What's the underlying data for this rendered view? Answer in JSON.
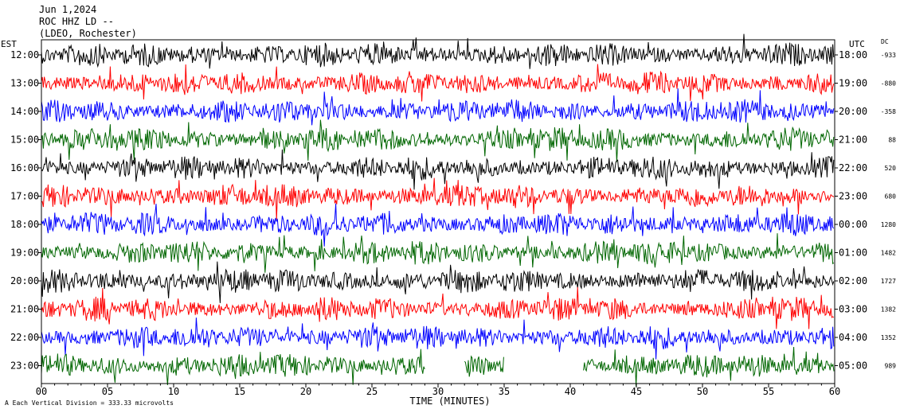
{
  "header": {
    "date": "Jun 1,2024",
    "station": "ROC HHZ LD --",
    "network": "(LDEO, Rochester)"
  },
  "labels": {
    "left_zone": "EST",
    "right_zone": "UTC",
    "dc_label": "DC",
    "footer_note": "Each Vertical Division =  333.33 microvolts",
    "footer_mark": "A"
  },
  "chart_data": {
    "type": "line",
    "title": "Jun 1,2024",
    "xlabel": "TIME (MINUTES)",
    "ylabel": "",
    "xlim": [
      0,
      60
    ],
    "x_ticks": [
      0,
      5,
      10,
      15,
      20,
      25,
      30,
      35,
      40,
      45,
      50,
      55,
      60
    ],
    "x_tick_labels": [
      "00",
      "05",
      "10",
      "15",
      "20",
      "25",
      "30",
      "35",
      "40",
      "45",
      "50",
      "55",
      "60"
    ],
    "trace_colors": [
      "#000000",
      "#ff0000",
      "#0000ff",
      "#006600"
    ],
    "rows": [
      {
        "est": "12:00",
        "utc": "18:00",
        "dc": "-933",
        "color": "#000000"
      },
      {
        "est": "13:00",
        "utc": "19:00",
        "dc": "-880",
        "color": "#ff0000"
      },
      {
        "est": "14:00",
        "utc": "20:00",
        "dc": "-358",
        "color": "#0000ff"
      },
      {
        "est": "15:00",
        "utc": "21:00",
        "dc": "88",
        "color": "#006600"
      },
      {
        "est": "16:00",
        "utc": "22:00",
        "dc": "520",
        "color": "#000000"
      },
      {
        "est": "17:00",
        "utc": "23:00",
        "dc": "680",
        "color": "#ff0000"
      },
      {
        "est": "18:00",
        "utc": "00:00",
        "dc": "1280",
        "color": "#0000ff"
      },
      {
        "est": "19:00",
        "utc": "01:00",
        "dc": "1482",
        "color": "#006600"
      },
      {
        "est": "20:00",
        "utc": "02:00",
        "dc": "1727",
        "color": "#000000"
      },
      {
        "est": "21:00",
        "utc": "03:00",
        "dc": "1382",
        "color": "#ff0000"
      },
      {
        "est": "22:00",
        "utc": "04:00",
        "dc": "1352",
        "color": "#0000ff"
      },
      {
        "est": "23:00",
        "utc": "05:00",
        "dc": "989",
        "color": "#006600"
      }
    ],
    "last_row_gaps_minutes": [
      [
        29,
        32
      ],
      [
        35,
        41
      ]
    ],
    "grid": false,
    "legend": "none"
  }
}
